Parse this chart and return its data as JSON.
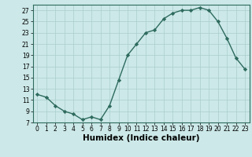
{
  "x": [
    0,
    1,
    2,
    3,
    4,
    5,
    6,
    7,
    8,
    9,
    10,
    11,
    12,
    13,
    14,
    15,
    16,
    17,
    18,
    19,
    20,
    21,
    22,
    23
  ],
  "y": [
    12.0,
    11.5,
    10.0,
    9.0,
    8.5,
    7.5,
    8.0,
    7.5,
    10.0,
    14.5,
    19.0,
    21.0,
    23.0,
    23.5,
    25.5,
    26.5,
    27.0,
    27.0,
    27.5,
    27.0,
    25.0,
    22.0,
    18.5,
    16.5
  ],
  "xlabel": "Humidex (Indice chaleur)",
  "xlim": [
    -0.5,
    23.5
  ],
  "ylim": [
    7,
    28
  ],
  "yticks": [
    7,
    9,
    11,
    13,
    15,
    17,
    19,
    21,
    23,
    25,
    27
  ],
  "xticks": [
    0,
    1,
    2,
    3,
    4,
    5,
    6,
    7,
    8,
    9,
    10,
    11,
    12,
    13,
    14,
    15,
    16,
    17,
    18,
    19,
    20,
    21,
    22,
    23
  ],
  "line_color": "#2e6b5e",
  "marker": "D",
  "marker_size": 2.2,
  "bg_color": "#cce8e8",
  "grid_color": "#aacece",
  "spine_color": "#2e6b5e",
  "tick_fontsize": 5.5,
  "xlabel_fontsize": 7.5,
  "linewidth": 1.0
}
